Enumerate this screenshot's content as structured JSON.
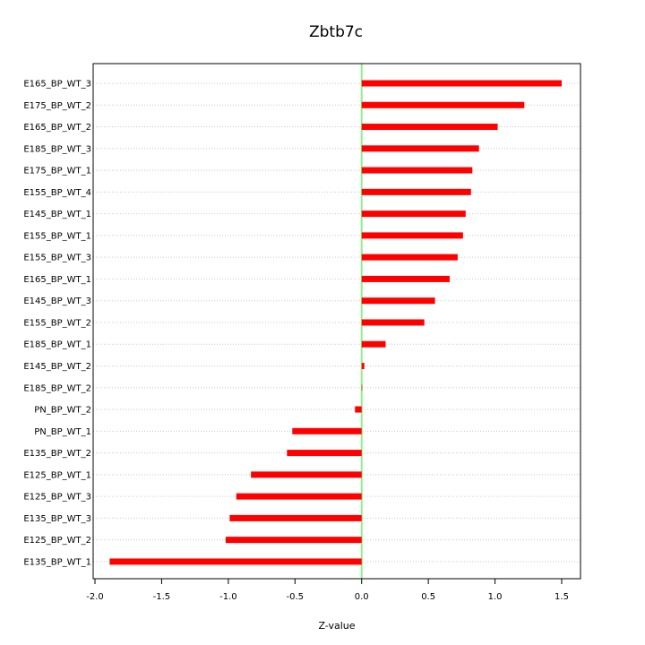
{
  "chart_data": {
    "type": "bar",
    "orientation": "horizontal",
    "title": "Zbtb7c",
    "xlabel": "Z-value",
    "ylabel": "",
    "xlim": [
      -2.0,
      1.6
    ],
    "xticks": [
      -2.0,
      -1.5,
      -1.0,
      -0.5,
      0.0,
      0.5,
      1.0,
      1.5
    ],
    "xtick_labels": [
      "-2.0",
      "-1.5",
      "-1.0",
      "-0.5",
      "0.0",
      "0.5",
      "1.0",
      "1.5"
    ],
    "grid": "horizontal-dotted",
    "reference_line": 0.0,
    "bar_color": "#ff0000",
    "reference_line_color": "#90ee90",
    "categories": [
      "E165_BP_WT_3",
      "E175_BP_WT_2",
      "E165_BP_WT_2",
      "E185_BP_WT_3",
      "E175_BP_WT_1",
      "E155_BP_WT_4",
      "E145_BP_WT_1",
      "E155_BP_WT_1",
      "E155_BP_WT_3",
      "E165_BP_WT_1",
      "E145_BP_WT_3",
      "E155_BP_WT_2",
      "E185_BP_WT_1",
      "E145_BP_WT_2",
      "E185_BP_WT_2",
      "PN_BP_WT_2",
      "PN_BP_WT_1",
      "E135_BP_WT_2",
      "E125_BP_WT_1",
      "E125_BP_WT_3",
      "E135_BP_WT_3",
      "E125_BP_WT_2",
      "E135_BP_WT_1"
    ],
    "values": [
      1.5,
      1.22,
      1.02,
      0.88,
      0.83,
      0.82,
      0.78,
      0.76,
      0.72,
      0.66,
      0.55,
      0.47,
      0.18,
      0.02,
      0.0,
      -0.05,
      -0.52,
      -0.56,
      -0.83,
      -0.94,
      -0.99,
      -1.02,
      -1.89
    ]
  }
}
